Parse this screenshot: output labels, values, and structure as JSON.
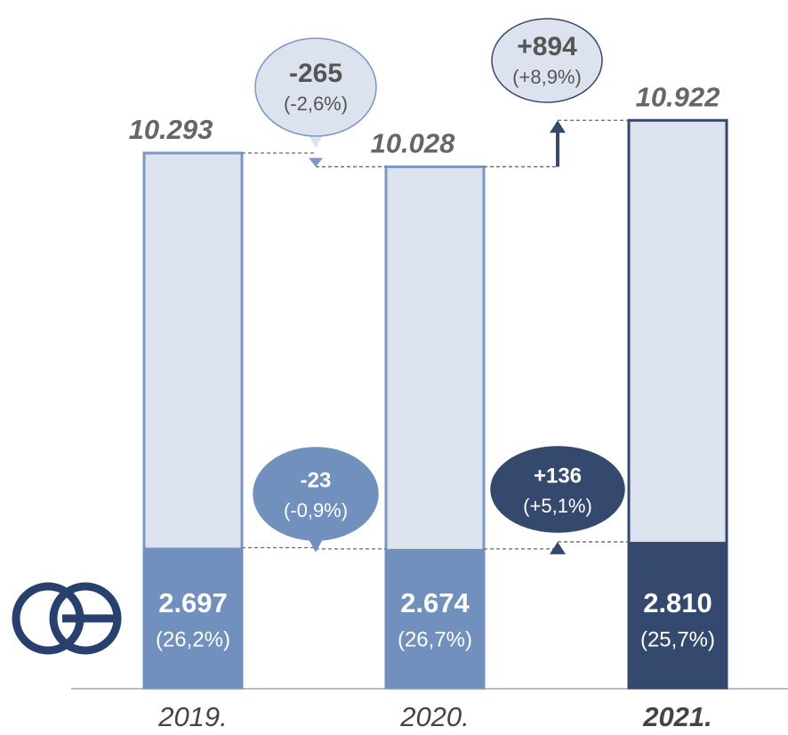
{
  "chart_data": {
    "type": "bar",
    "categories": [
      "2019.",
      "2020.",
      "2021."
    ],
    "ylim": [
      0,
      11500
    ],
    "series": [
      {
        "values": [
          10293,
          10028,
          10922
        ],
        "value_labels": [
          "10.293",
          "10.028",
          "10.922"
        ],
        "colors": [
          "#dde3ee",
          "#dde3ee",
          "#dde3ee"
        ],
        "borders": [
          "#7b97c4",
          "#7b97c4",
          "#34486b"
        ]
      },
      {
        "values": [
          2697,
          2674,
          2810
        ],
        "value_labels": [
          "2.697",
          "2.674",
          "2.810"
        ],
        "shares": [
          26.2,
          26.7,
          25.7
        ],
        "share_labels": [
          "(26,2%)",
          "(26,7%)",
          "(25,7%)"
        ],
        "colors": [
          "#7190bd",
          "#7190bd",
          "#34496d"
        ]
      }
    ],
    "annotations": [
      {
        "text": "-265",
        "subtext": "(-2,6%)"
      },
      {
        "text": "+894",
        "subtext": "(+8,9%)"
      },
      {
        "text": "-23",
        "subtext": "(-0,9%)"
      },
      {
        "text": "+136",
        "subtext": "(+5,1%)"
      }
    ]
  }
}
